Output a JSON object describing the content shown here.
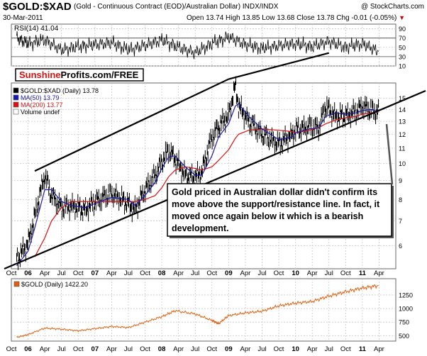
{
  "header": {
    "symbol": "$GOLD:$XAD",
    "description": "(Gold - Continuous Contract (EOD)/Australian Dollar) INDX/INDX",
    "brand": "@ StockCharts.com",
    "date": "30-Mar-2011",
    "ohlc": "Open 13.74 High 13.85 Low 13.68 Close 13.78 Chg -0.01 (-0.05%)",
    "chg_marker": "▼"
  },
  "sunshine": {
    "part1": "Sunshine",
    "part2": "Profits.com/FREE"
  },
  "annotation": "Gold priced in Australian dollar didn't confirm its move above the support/resistance line. In fact, it moved once again below it which is a bearish development.",
  "colors": {
    "price": "#000000",
    "ma50": "#1a1aaa",
    "ma200": "#dd1111",
    "gold": "#e06010",
    "sunshine_red": "#d81010",
    "grid": "#c8c8c8"
  },
  "chart_data": [
    {
      "type": "line",
      "name": "rsi-panel",
      "legend": "RSI(14) 41.04",
      "ylim": [
        10,
        100
      ],
      "yticks": [
        90,
        70,
        50,
        30,
        10
      ],
      "levels": [
        70,
        30
      ],
      "x": [
        2005.83,
        2006.0,
        2006.25,
        2006.5,
        2006.75,
        2007.0,
        2007.25,
        2007.5,
        2007.75,
        2008.0,
        2008.25,
        2008.5,
        2008.75,
        2009.0,
        2009.25,
        2009.5,
        2009.75,
        2010.0,
        2010.25,
        2010.5,
        2010.75,
        2011.0,
        2011.24
      ],
      "values": [
        70,
        58,
        66,
        44,
        52,
        56,
        60,
        45,
        54,
        66,
        50,
        38,
        58,
        72,
        56,
        48,
        54,
        58,
        52,
        62,
        50,
        58,
        41
      ]
    },
    {
      "type": "line",
      "name": "price-panel",
      "legend": [
        "$GOLD:$XAD (Daily) 13.78",
        "MA(50) 13.79",
        "MA(200) 13.77",
        "Volume undef"
      ],
      "scale": "log",
      "ylim": [
        5.2,
        16.5
      ],
      "yticks": [
        15,
        14,
        13,
        12,
        11,
        10,
        9,
        8,
        7,
        6
      ],
      "x": [
        2005.83,
        2006.0,
        2006.1,
        2006.25,
        2006.35,
        2006.5,
        2006.65,
        2006.85,
        2007.0,
        2007.25,
        2007.5,
        2007.6,
        2007.75,
        2007.9,
        2008.0,
        2008.1,
        2008.2,
        2008.35,
        2008.5,
        2008.6,
        2008.75,
        2008.85,
        2009.0,
        2009.1,
        2009.15,
        2009.3,
        2009.5,
        2009.75,
        2009.95,
        2010.0,
        2010.2,
        2010.35,
        2010.45,
        2010.6,
        2010.75,
        2010.9,
        2011.0,
        2011.15,
        2011.24
      ],
      "series": [
        {
          "name": "$GOLD:$XAD",
          "values": [
            5.5,
            6.1,
            7.2,
            9.3,
            8.2,
            7.6,
            7.7,
            7.5,
            7.9,
            8.3,
            7.8,
            7.5,
            8.5,
            9.3,
            10.1,
            10.9,
            10.3,
            9.3,
            9.2,
            9.5,
            11.8,
            12.6,
            13.5,
            16.2,
            14.3,
            13.0,
            12.0,
            11.3,
            12.0,
            12.3,
            12.6,
            12.5,
            14.3,
            13.4,
            13.5,
            13.8,
            14.3,
            13.9,
            13.78
          ]
        },
        {
          "name": "MA(50)",
          "values": [
            5.3,
            5.8,
            6.7,
            8.5,
            8.5,
            7.9,
            7.7,
            7.6,
            7.8,
            8.1,
            8.0,
            7.7,
            8.2,
            8.9,
            9.7,
            10.4,
            10.5,
            9.8,
            9.3,
            9.3,
            10.5,
            11.8,
            12.8,
            14.3,
            14.5,
            13.4,
            12.4,
            11.6,
            11.8,
            12.1,
            12.4,
            12.5,
            13.4,
            13.7,
            13.6,
            13.7,
            13.9,
            14.0,
            13.79
          ]
        },
        {
          "name": "MA(200)",
          "values": [
            null,
            null,
            5.6,
            6.3,
            7.0,
            7.6,
            7.9,
            7.9,
            7.9,
            7.9,
            7.9,
            7.9,
            8.0,
            8.2,
            8.6,
            9.2,
            9.6,
            9.8,
            9.7,
            9.6,
            9.8,
            10.2,
            10.9,
            11.7,
            12.0,
            12.3,
            12.4,
            12.3,
            12.2,
            12.1,
            12.3,
            12.5,
            12.8,
            13.1,
            13.3,
            13.4,
            13.6,
            13.7,
            13.77
          ]
        }
      ],
      "trendlines": [
        {
          "name": "upper-channel",
          "x": [
            2006.1,
            2009.0
          ],
          "values": [
            9.55,
            16.9
          ]
        },
        {
          "name": "upper-channel-rsi-extension",
          "x": [
            2009.0,
            2010.5
          ],
          "values": [
            16.9,
            22.5
          ]
        },
        {
          "name": "support-line",
          "x": [
            2005.75,
            2011.5
          ],
          "values": [
            5.2,
            14.7
          ]
        }
      ]
    },
    {
      "type": "line",
      "name": "gold-panel",
      "legend": "$GOLD (Daily) 1422.20",
      "ylim": [
        400,
        1550
      ],
      "yticks": [
        1250,
        1000,
        750,
        500
      ],
      "x": [
        2005.83,
        2006.0,
        2006.25,
        2006.5,
        2006.75,
        2007.0,
        2007.25,
        2007.5,
        2007.75,
        2008.0,
        2008.2,
        2008.5,
        2008.75,
        2008.85,
        2009.0,
        2009.25,
        2009.5,
        2009.75,
        2010.0,
        2010.25,
        2010.5,
        2010.75,
        2011.0,
        2011.24
      ],
      "values": [
        470,
        520,
        640,
        620,
        590,
        630,
        670,
        650,
        750,
        850,
        960,
        900,
        780,
        720,
        870,
        920,
        950,
        1050,
        1100,
        1130,
        1230,
        1310,
        1380,
        1422
      ]
    }
  ],
  "xaxis": {
    "tick_labels": [
      "Oct",
      "06",
      "Apr",
      "Jul",
      "Oct",
      "07",
      "Apr",
      "Jul",
      "Oct",
      "08",
      "Apr",
      "Jul",
      "Oct",
      "09",
      "Apr",
      "Jul",
      "Oct",
      "10",
      "Apr",
      "Jul",
      "Oct",
      "11",
      "Apr"
    ],
    "tick_x": [
      2005.75,
      2006.0,
      2006.25,
      2006.5,
      2006.75,
      2007.0,
      2007.25,
      2007.5,
      2007.75,
      2008.0,
      2008.25,
      2008.5,
      2008.75,
      2009.0,
      2009.25,
      2009.5,
      2009.75,
      2010.0,
      2010.25,
      2010.5,
      2010.75,
      2011.0,
      2011.25
    ],
    "bold": [
      "06",
      "07",
      "08",
      "09",
      "10",
      "11"
    ]
  }
}
